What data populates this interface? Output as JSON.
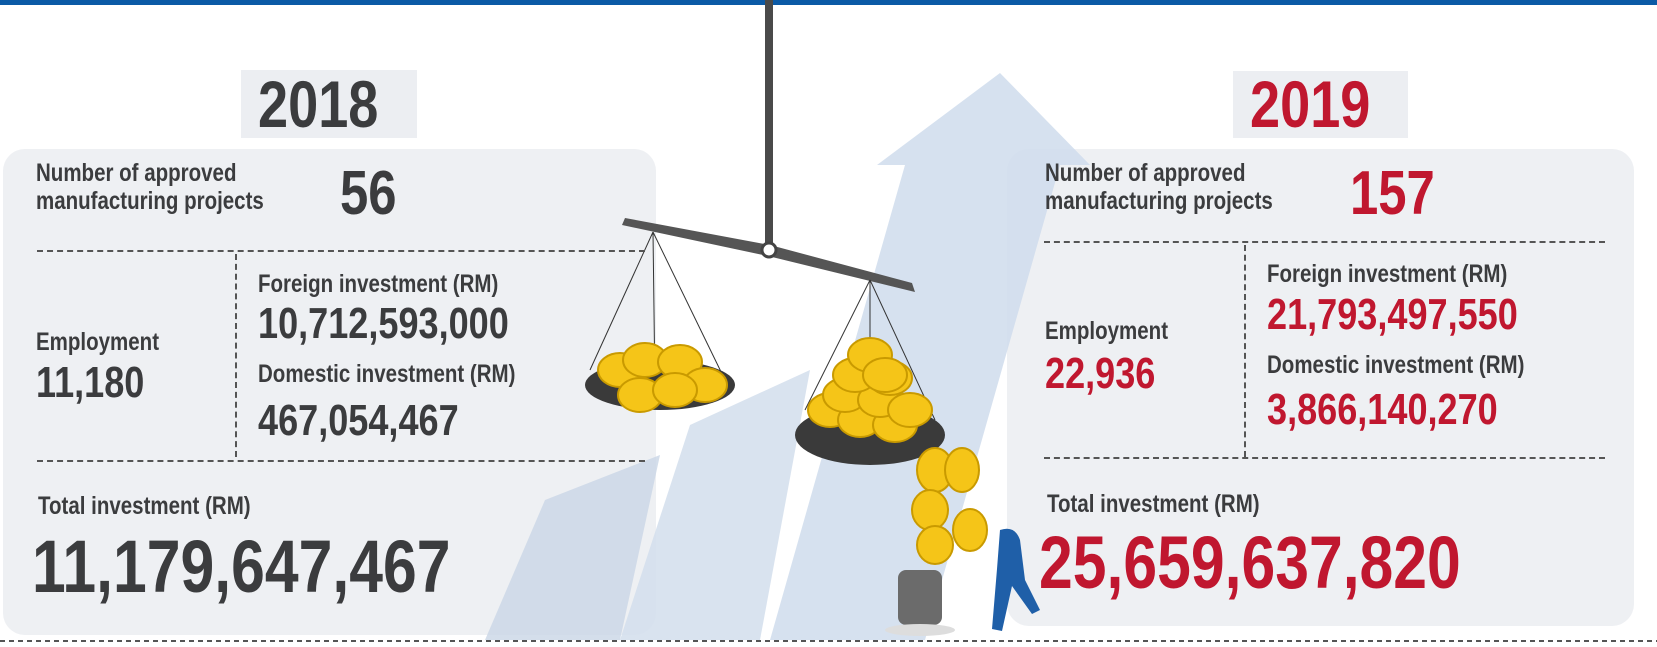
{
  "panels": [
    {
      "year": "2018",
      "projects_label": "Number of approved manufacturing projects",
      "projects": "56",
      "employment_label": "Employment",
      "employment": "11,180",
      "foreign_label": "Foreign investment (RM)",
      "foreign": "10,712,593,000",
      "domestic_label": "Domestic investment (RM)",
      "domestic": "467,054,467",
      "total_label": "Total investment (RM)",
      "total": "11,179,647,467"
    },
    {
      "year": "2019",
      "projects_label": "Number of approved manufacturing projects",
      "projects": "157",
      "employment_label": "Employment",
      "employment": "22,936",
      "foreign_label": "Foreign investment (RM)",
      "foreign": "21,793,497,550",
      "domestic_label": "Domestic investment (RM)",
      "domestic": "3,866,140,270",
      "total_label": "Total investment (RM)",
      "total": "25,659,637,820"
    }
  ]
}
